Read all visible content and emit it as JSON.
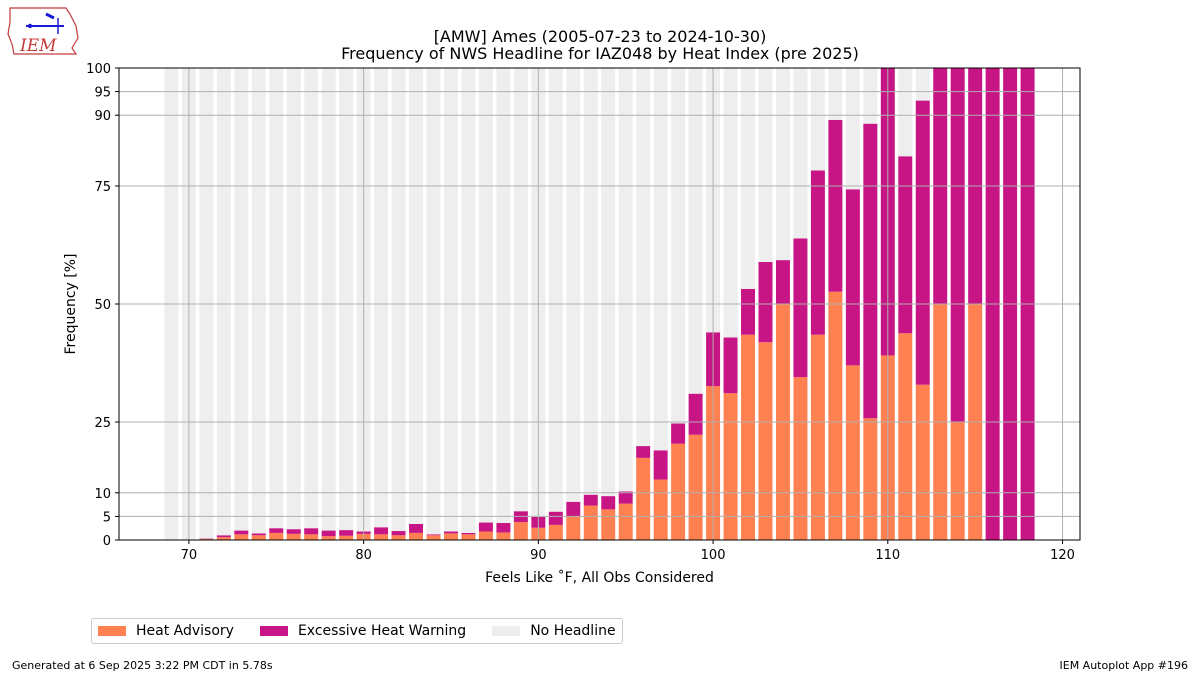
{
  "title": "[AMW] Ames (2005-07-23 to 2024-10-30)",
  "subtitle": "Frequency of NWS Headline for IAZ048 by Heat Index (pre 2025)",
  "footer": {
    "left": "Generated at 6 Sep 2025 3:22 PM CDT in 5.78s",
    "right": "IEM Autoplot App #196"
  },
  "logo": {
    "text": "IEM"
  },
  "colors": {
    "advisory": "#ff8050",
    "warning": "#c71585",
    "no_headline": "#eeeeee",
    "grid": "#b0b0b0"
  },
  "legend": {
    "advisory": "Heat Advisory",
    "warning": "Excessive Heat Warning",
    "none": "No Headline"
  },
  "chart_data": {
    "type": "bar",
    "stacked": true,
    "xlabel": "Feels Like $^\\circ$F, All Obs Considered",
    "ylabel": "Frequency [%]",
    "xlim": [
      66,
      121
    ],
    "ylim": [
      0,
      100
    ],
    "xticks": [
      70,
      80,
      90,
      100,
      110,
      120
    ],
    "yticks": [
      0,
      5,
      10,
      25,
      50,
      75,
      90,
      95,
      100
    ],
    "grid": true,
    "legend_position": "bottom-left, below plot",
    "x": [
      69,
      70,
      71,
      72,
      73,
      74,
      75,
      76,
      77,
      78,
      79,
      80,
      81,
      82,
      83,
      84,
      85,
      86,
      87,
      88,
      89,
      90,
      91,
      92,
      93,
      94,
      95,
      96,
      97,
      98,
      99,
      100,
      101,
      102,
      103,
      104,
      105,
      106,
      107,
      108,
      109,
      110,
      111,
      112,
      113,
      114,
      115,
      116,
      117,
      118
    ],
    "series": [
      {
        "name": "Heat Advisory",
        "values": [
          0,
          0,
          0.2,
          0.6,
          1.2,
          1.0,
          1.5,
          1.3,
          1.2,
          0.8,
          0.9,
          1.3,
          1.2,
          1.0,
          1.5,
          1.0,
          1.4,
          1.2,
          1.8,
          1.6,
          3.8,
          2.6,
          3.2,
          5.0,
          7.3,
          6.5,
          7.7,
          17.4,
          12.8,
          20.4,
          22.3,
          32.6,
          31.1,
          43.5,
          41.9,
          50.0,
          34.5,
          43.5,
          52.6,
          37.0,
          25.8,
          39.1,
          43.8,
          32.9,
          50.0,
          25.0,
          50.0,
          0,
          0,
          0
        ]
      },
      {
        "name": "Excessive Heat Warning",
        "values": [
          0,
          0,
          0.1,
          0.4,
          0.8,
          0.4,
          1.0,
          1.0,
          1.3,
          1.2,
          1.2,
          0.5,
          1.5,
          0.9,
          1.9,
          0.2,
          0.4,
          0.3,
          1.9,
          2.0,
          2.3,
          2.3,
          2.8,
          3.1,
          2.3,
          2.8,
          2.6,
          2.5,
          6.2,
          4.3,
          8.7,
          11.4,
          11.8,
          9.7,
          17.0,
          9.3,
          29.4,
          34.8,
          36.4,
          37.3,
          62.4,
          60.9,
          37.5,
          60.2,
          50.0,
          75.0,
          50.0,
          100,
          100,
          100
        ]
      },
      {
        "name": "No Headline",
        "values": [
          100,
          100,
          99.7,
          99.0,
          98.0,
          98.6,
          97.5,
          97.7,
          97.5,
          98.0,
          97.9,
          98.2,
          97.3,
          98.1,
          96.6,
          98.8,
          98.2,
          98.5,
          96.3,
          96.4,
          93.9,
          95.1,
          94.0,
          91.9,
          90.4,
          90.7,
          89.7,
          80.1,
          81.0,
          75.3,
          69.0,
          56.0,
          57.1,
          46.8,
          41.1,
          40.7,
          36.1,
          21.7,
          11.0,
          25.7,
          11.8,
          0,
          18.7,
          6.9,
          0,
          0,
          0,
          0,
          0,
          0
        ]
      }
    ]
  }
}
